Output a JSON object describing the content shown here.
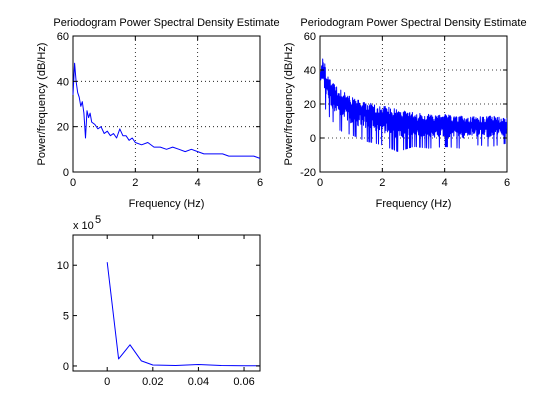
{
  "colors": {
    "series": "#0000ff",
    "axes": "#000000",
    "background": "#ffffff"
  },
  "chart_data": [
    {
      "id": "top-left",
      "type": "line",
      "title": "Periodogram Power Spectral Density Estimate",
      "xlabel": "Frequency (Hz)",
      "ylabel": "Power/frequency (dB/Hz)",
      "xlim": [
        0,
        6
      ],
      "ylim": [
        0,
        60
      ],
      "xticks": [
        0,
        2,
        4,
        6
      ],
      "yticks": [
        0,
        20,
        40,
        60
      ],
      "grid": true,
      "series": [
        {
          "x": [
            0,
            0.05,
            0.1,
            0.15,
            0.2,
            0.25,
            0.3,
            0.35,
            0.4,
            0.45,
            0.5,
            0.55,
            0.6,
            0.7,
            0.8,
            0.9,
            1.0,
            1.1,
            1.2,
            1.3,
            1.4,
            1.5,
            1.6,
            1.7,
            1.8,
            1.9,
            2.0,
            2.2,
            2.4,
            2.6,
            2.8,
            3.0,
            3.2,
            3.4,
            3.6,
            3.8,
            4.0,
            4.2,
            4.4,
            4.6,
            4.8,
            5.0,
            5.2,
            5.4,
            5.6,
            5.8,
            6.0
          ],
          "y": [
            34,
            48,
            40,
            35,
            33,
            29,
            31,
            26,
            15,
            27,
            24,
            26,
            22,
            21,
            19,
            20,
            17,
            18,
            16,
            17,
            15,
            19,
            16,
            16,
            14,
            15,
            13,
            12,
            13,
            11,
            11,
            10,
            11,
            10,
            9,
            10,
            9,
            8,
            8,
            8,
            8,
            7,
            7,
            7,
            7,
            7,
            6
          ]
        }
      ]
    },
    {
      "id": "top-right",
      "type": "line",
      "title": "Periodogram Power Spectral Density Estimate",
      "xlabel": "Frequency (Hz)",
      "ylabel": "Power/frequency (dB/Hz)",
      "xlim": [
        0,
        6
      ],
      "ylim": [
        -20,
        60
      ],
      "xticks": [
        0,
        2,
        4,
        6
      ],
      "yticks": [
        -20,
        0,
        20,
        40,
        60
      ],
      "grid": true,
      "series": [
        {
          "upper_x": [
            0,
            0.1,
            0.2,
            0.4,
            0.6,
            0.8,
            1.0,
            1.5,
            2.0,
            2.5,
            3.0,
            3.5,
            4.0,
            4.5,
            5.0,
            5.5,
            6.0
          ],
          "upper_y": [
            38,
            48,
            40,
            33,
            29,
            27,
            24,
            21,
            19,
            17,
            15,
            14,
            14,
            13,
            13,
            13,
            12
          ],
          "lower_x": [
            0,
            0.1,
            0.2,
            0.4,
            0.6,
            0.8,
            1.0,
            1.5,
            2.0,
            2.5,
            3.0,
            3.5,
            4.0,
            4.5,
            5.0,
            5.5,
            6.0
          ],
          "lower_y": [
            30,
            25,
            15,
            10,
            5,
            3,
            2,
            -2,
            -4,
            -8,
            -5,
            -6,
            -5,
            -6,
            -4,
            -5,
            -3
          ]
        }
      ]
    },
    {
      "id": "bottom-left",
      "type": "line",
      "multiplier_label": "x 10",
      "multiplier_exponent": "5",
      "xlim": [
        -0.015,
        0.067
      ],
      "ylim": [
        -0.5,
        13
      ],
      "xticks": [
        0,
        0.02,
        0.04,
        0.06
      ],
      "xticklabels": [
        "0",
        "0.02",
        "0.04",
        "0.06"
      ],
      "yticks": [
        0,
        5,
        10
      ],
      "grid": false,
      "series": [
        {
          "x": [
            0,
            0.005,
            0.01,
            0.015,
            0.02,
            0.03,
            0.04,
            0.05,
            0.06,
            0.067
          ],
          "y": [
            10.3,
            0.7,
            2.1,
            0.5,
            0.1,
            0.05,
            0.15,
            0.05,
            0.03,
            0.02
          ]
        }
      ]
    }
  ]
}
